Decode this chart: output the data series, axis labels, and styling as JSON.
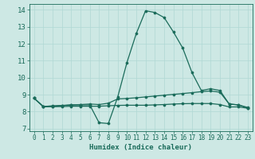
{
  "title": "",
  "xlabel": "Humidex (Indice chaleur)",
  "ylabel": "",
  "background_color": "#cde8e4",
  "grid_color": "#b0d8d4",
  "line_color": "#1a6b5a",
  "xlim": [
    -0.5,
    23.5
  ],
  "ylim": [
    6.85,
    14.35
  ],
  "yticks": [
    7,
    8,
    9,
    10,
    11,
    12,
    13,
    14
  ],
  "xticks": [
    0,
    1,
    2,
    3,
    4,
    5,
    6,
    7,
    8,
    9,
    10,
    11,
    12,
    13,
    14,
    15,
    16,
    17,
    18,
    19,
    20,
    21,
    22,
    23
  ],
  "line1_x": [
    0,
    1,
    2,
    3,
    4,
    5,
    6,
    7,
    8,
    9,
    10,
    11,
    12,
    13,
    14,
    15,
    16,
    17,
    18,
    19,
    20,
    21,
    22,
    23
  ],
  "line1_y": [
    8.8,
    8.3,
    8.3,
    8.35,
    8.4,
    8.4,
    8.4,
    7.35,
    7.3,
    8.85,
    10.9,
    12.6,
    13.95,
    13.85,
    13.55,
    12.7,
    11.75,
    10.3,
    9.25,
    9.35,
    9.25,
    8.45,
    8.4,
    8.2
  ],
  "line2_x": [
    0,
    1,
    2,
    3,
    4,
    5,
    6,
    7,
    8,
    9,
    10,
    11,
    12,
    13,
    14,
    15,
    16,
    17,
    18,
    19,
    20,
    21,
    22,
    23
  ],
  "line2_y": [
    8.8,
    8.3,
    8.35,
    8.37,
    8.4,
    8.42,
    8.45,
    8.42,
    8.5,
    8.75,
    8.78,
    8.82,
    8.87,
    8.92,
    8.97,
    9.02,
    9.07,
    9.12,
    9.18,
    9.22,
    9.15,
    8.45,
    8.4,
    8.25
  ],
  "line3_x": [
    0,
    1,
    2,
    3,
    4,
    5,
    6,
    7,
    8,
    9,
    10,
    11,
    12,
    13,
    14,
    15,
    16,
    17,
    18,
    19,
    20,
    21,
    22,
    23
  ],
  "line3_y": [
    8.8,
    8.3,
    8.3,
    8.3,
    8.32,
    8.32,
    8.32,
    8.32,
    8.35,
    8.37,
    8.38,
    8.38,
    8.38,
    8.4,
    8.42,
    8.45,
    8.47,
    8.48,
    8.48,
    8.48,
    8.42,
    8.28,
    8.28,
    8.2
  ]
}
